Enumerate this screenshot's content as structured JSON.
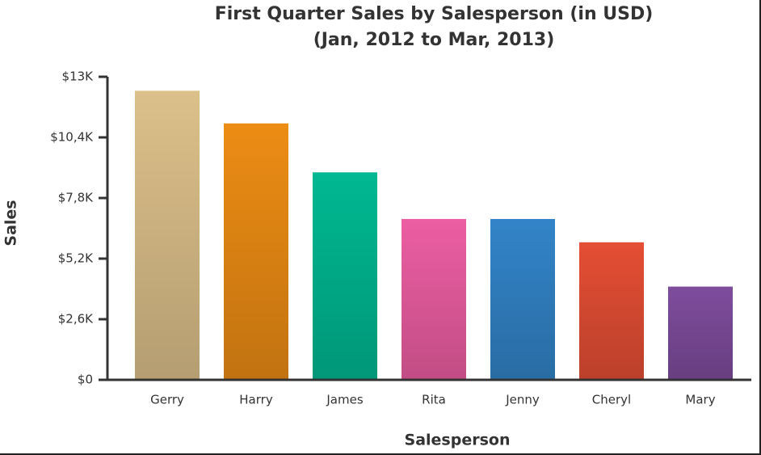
{
  "chart_data": {
    "type": "bar",
    "title": "First Quarter Sales by Salesperson (in USD)",
    "subtitle": "(Jan, 2012 to Mar, 2013)",
    "x_label": "Salesperson",
    "y_label": "Sales",
    "categories": [
      "Gerry",
      "Harry",
      "James",
      "Rita",
      "Jenny",
      "Cheryl",
      "Mary"
    ],
    "values": [
      12400,
      11000,
      8900,
      6900,
      6900,
      5900,
      4000
    ],
    "colors": [
      "#dcc08a",
      "#ec8c14",
      "#00b892",
      "#ec5ea2",
      "#3284c8",
      "#e44e34",
      "#7e4c9c"
    ],
    "ylim": [
      0,
      13000
    ],
    "yticks": [
      {
        "value": 0,
        "label": "$0"
      },
      {
        "value": 2600,
        "label": "$2,6K"
      },
      {
        "value": 5200,
        "label": "$5,2K"
      },
      {
        "value": 7800,
        "label": "$7,8K"
      },
      {
        "value": 10400,
        "label": "$10,4K"
      },
      {
        "value": 13000,
        "label": "$13K"
      }
    ],
    "grid": false
  }
}
